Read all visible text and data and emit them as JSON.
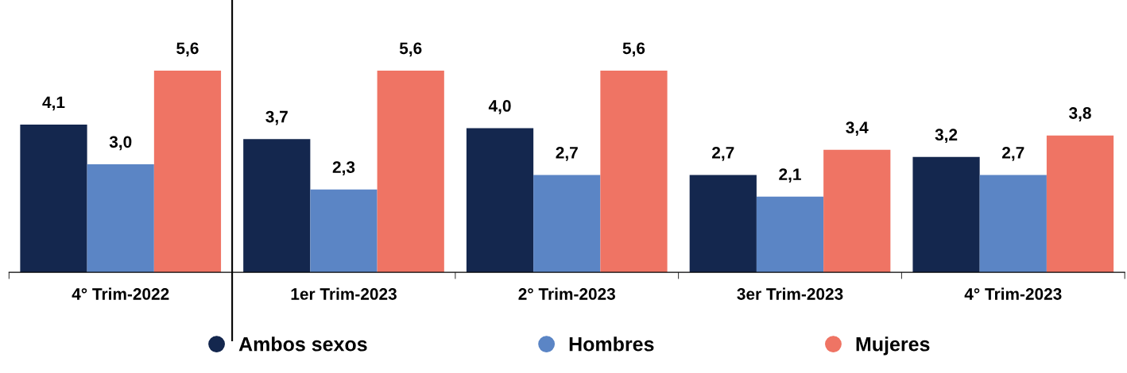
{
  "chart_data": {
    "type": "bar",
    "categories": [
      "4° Trim-2022",
      "1er Trim-2023",
      "2° Trim-2023",
      "3er Trim-2023",
      "4° Trim-2023"
    ],
    "series": [
      {
        "name": "Ambos sexos",
        "color": "#14274e",
        "values": [
          4.1,
          3.7,
          4.0,
          2.7,
          3.2
        ],
        "value_labels": [
          "4,1",
          "3,7",
          "4,0",
          "2,7",
          "3,2"
        ]
      },
      {
        "name": "Hombres",
        "color": "#5b85c5",
        "values": [
          3.0,
          2.3,
          2.7,
          2.1,
          2.7
        ],
        "value_labels": [
          "3,0",
          "2,3",
          "2,7",
          "2,1",
          "2,7"
        ]
      },
      {
        "name": "Mujeres",
        "color": "#ef7464",
        "values": [
          5.6,
          5.6,
          5.6,
          3.4,
          3.8
        ],
        "value_labels": [
          "5,6",
          "5,6",
          "5,6",
          "3,4",
          "3,8"
        ]
      }
    ],
    "legend": "bottom",
    "grid": false
  }
}
